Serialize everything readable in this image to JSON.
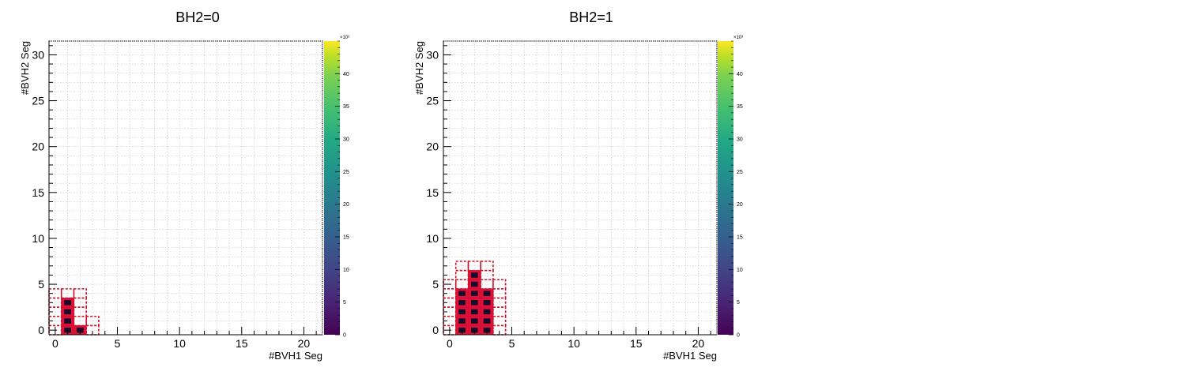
{
  "chart_data": [
    {
      "type": "heatmap",
      "title": "BH2=0",
      "xlabel": "#BVH1 Seg",
      "ylabel": "#BVH2 Seg",
      "xlim": [
        -0.5,
        21.5
      ],
      "ylim": [
        -0.5,
        31.5
      ],
      "x_ticks": [
        0,
        5,
        10,
        15,
        20
      ],
      "y_ticks": [
        0,
        5,
        10,
        15,
        20,
        25,
        30
      ],
      "grid": true,
      "colorbar": {
        "min": 0,
        "max": 45,
        "ticks": [
          0,
          5,
          10,
          15,
          20,
          25,
          30,
          35,
          40
        ],
        "exponent_label": "×10³"
      },
      "cells": [
        {
          "x": 1,
          "y": 0
        },
        {
          "x": 2,
          "y": 0
        },
        {
          "x": 1,
          "y": 1
        },
        {
          "x": 1,
          "y": 2
        },
        {
          "x": 1,
          "y": 3
        }
      ],
      "outline_cells": [
        {
          "x": 0,
          "y": 0
        },
        {
          "x": 0,
          "y": 1
        },
        {
          "x": 0,
          "y": 2
        },
        {
          "x": 0,
          "y": 3
        },
        {
          "x": 0,
          "y": 4
        },
        {
          "x": 1,
          "y": 4
        },
        {
          "x": 2,
          "y": 1
        },
        {
          "x": 2,
          "y": 2
        },
        {
          "x": 2,
          "y": 3
        },
        {
          "x": 2,
          "y": 4
        },
        {
          "x": 3,
          "y": 0
        },
        {
          "x": 3,
          "y": 1
        }
      ]
    },
    {
      "type": "heatmap",
      "title": "BH2=1",
      "xlabel": "#BVH1 Seg",
      "ylabel": "#BVH2 Seg",
      "xlim": [
        -0.5,
        21.5
      ],
      "ylim": [
        -0.5,
        31.5
      ],
      "x_ticks": [
        0,
        5,
        10,
        15,
        20
      ],
      "y_ticks": [
        0,
        5,
        10,
        15,
        20,
        25,
        30
      ],
      "grid": true,
      "colorbar": {
        "min": 0,
        "max": 45,
        "ticks": [
          0,
          5,
          10,
          15,
          20,
          25,
          30,
          35,
          40
        ],
        "exponent_label": "×10³"
      },
      "cells": [
        {
          "x": 1,
          "y": 0
        },
        {
          "x": 2,
          "y": 0
        },
        {
          "x": 3,
          "y": 0
        },
        {
          "x": 1,
          "y": 1
        },
        {
          "x": 2,
          "y": 1
        },
        {
          "x": 3,
          "y": 1
        },
        {
          "x": 1,
          "y": 2
        },
        {
          "x": 2,
          "y": 2
        },
        {
          "x": 3,
          "y": 2
        },
        {
          "x": 1,
          "y": 3
        },
        {
          "x": 2,
          "y": 3
        },
        {
          "x": 3,
          "y": 3
        },
        {
          "x": 1,
          "y": 4
        },
        {
          "x": 2,
          "y": 4
        },
        {
          "x": 3,
          "y": 4
        },
        {
          "x": 2,
          "y": 5
        },
        {
          "x": 2,
          "y": 6
        }
      ],
      "outline_cells": [
        {
          "x": 0,
          "y": 0
        },
        {
          "x": 0,
          "y": 1
        },
        {
          "x": 0,
          "y": 2
        },
        {
          "x": 0,
          "y": 3
        },
        {
          "x": 0,
          "y": 4
        },
        {
          "x": 0,
          "y": 5
        },
        {
          "x": 1,
          "y": 5
        },
        {
          "x": 1,
          "y": 6
        },
        {
          "x": 2,
          "y": 7
        },
        {
          "x": 1,
          "y": 7
        },
        {
          "x": 3,
          "y": 7
        },
        {
          "x": 3,
          "y": 5
        },
        {
          "x": 3,
          "y": 6
        },
        {
          "x": 4,
          "y": 0
        },
        {
          "x": 4,
          "y": 1
        },
        {
          "x": 4,
          "y": 2
        },
        {
          "x": 4,
          "y": 3
        },
        {
          "x": 4,
          "y": 4
        },
        {
          "x": 4,
          "y": 5
        }
      ]
    }
  ]
}
